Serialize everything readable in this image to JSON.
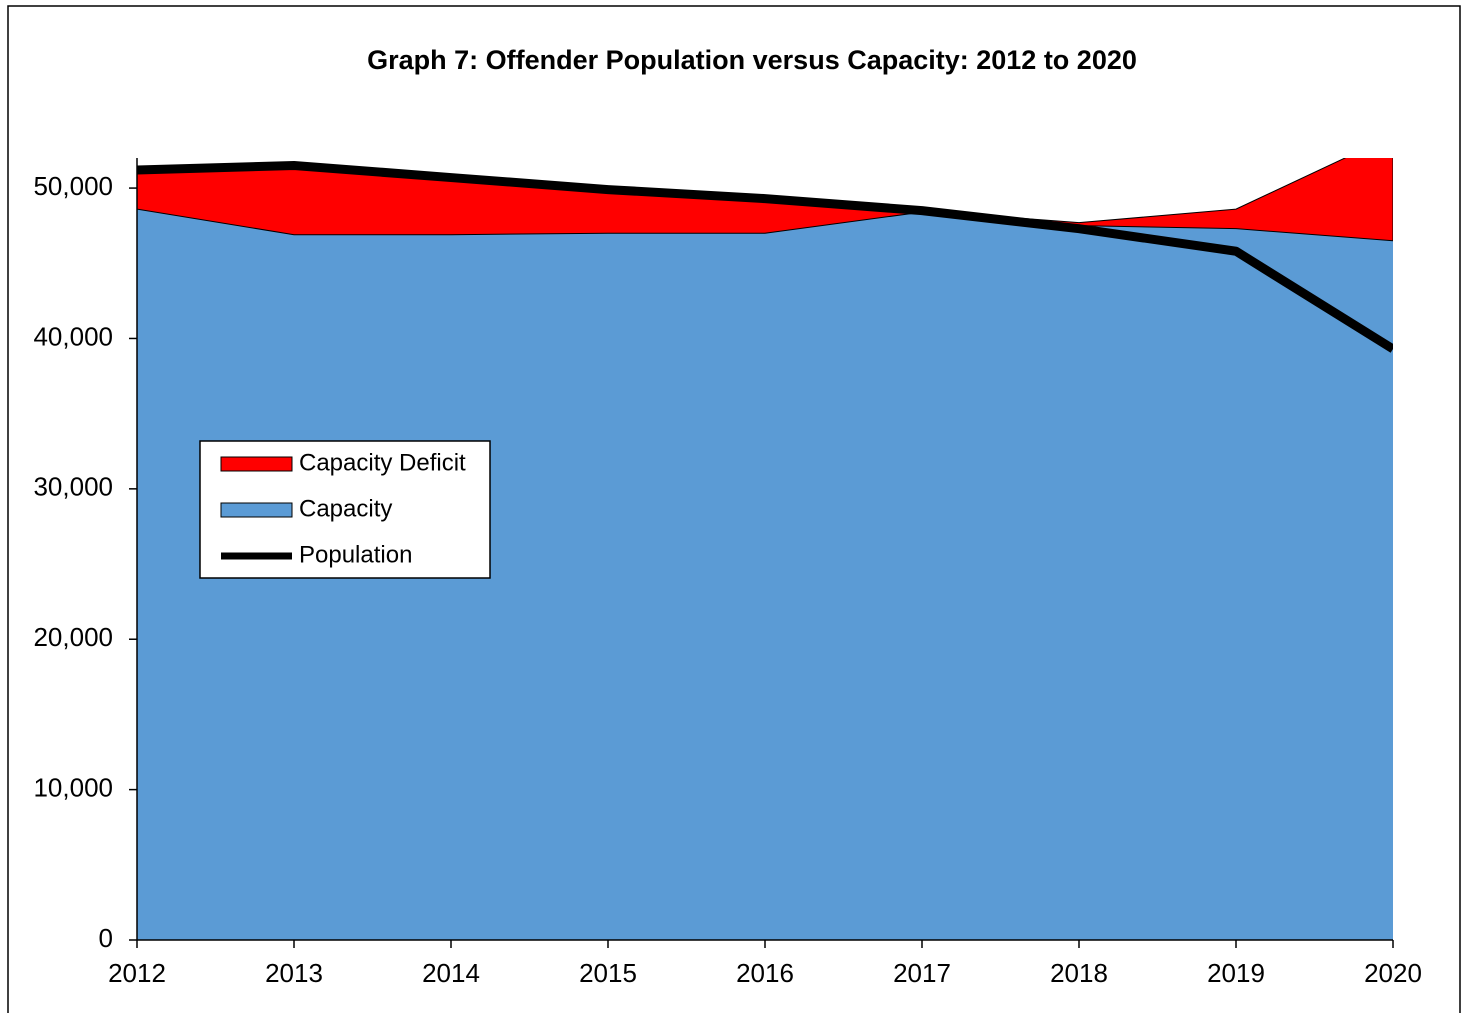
{
  "chart_data": {
    "type": "stacked-area-line",
    "title": "Graph 7:  Offender Population versus Capacity: 2012 to 2020",
    "categories": [
      "2012",
      "2013",
      "2014",
      "2015",
      "2016",
      "2017",
      "2018",
      "2019",
      "2020"
    ],
    "series": [
      {
        "name": "Capacity Deficit",
        "color": "#ff0000",
        "kind": "area",
        "values": [
          2800,
          4700,
          3800,
          3100,
          2400,
          100,
          200,
          1300,
          7000
        ]
      },
      {
        "name": "Capacity",
        "color": "#5b9bd5",
        "kind": "area",
        "values": [
          48600,
          46900,
          46900,
          47000,
          47000,
          48400,
          47500,
          47300,
          46500
        ]
      },
      {
        "name": "Population",
        "color": "#000000",
        "kind": "line",
        "values": [
          51200,
          51500,
          50700,
          49900,
          49300,
          48500,
          47300,
          45800,
          39300
        ]
      }
    ],
    "stack_order": [
      "Capacity",
      "Capacity Deficit"
    ],
    "ylim": [
      0,
      52000
    ],
    "yticks": [
      0,
      {
        "value": 10000,
        "label": "10,000"
      },
      {
        "value": 20000,
        "label": "20,000"
      },
      {
        "value": 30000,
        "label": "30,000"
      },
      {
        "value": 40000,
        "label": "40,000"
      },
      {
        "value": 50000,
        "label": "50,000"
      }
    ],
    "grid": false,
    "legend": "left"
  }
}
